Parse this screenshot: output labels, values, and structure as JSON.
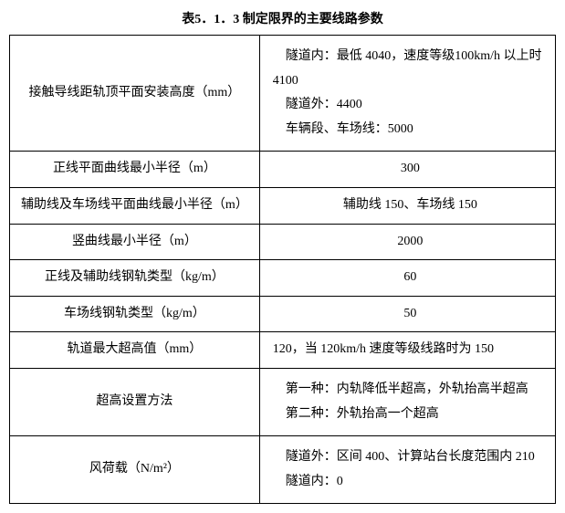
{
  "title": "表5．1．3 制定限界的主要线路参数",
  "rows": [
    {
      "label": "接触导线距轨顶平面安装高度（mm）",
      "value_lines": [
        "　隧道内：最低 4040，速度等级100km/h 以上时 4100",
        "　隧道外：4400",
        "　车辆段、车场线：5000"
      ]
    },
    {
      "label": "正线平面曲线最小半径（m）",
      "value": "300",
      "center": true
    },
    {
      "label": "辅助线及车场线平面曲线最小半径（m）",
      "value": "辅助线 150、车场线 150",
      "center": true
    },
    {
      "label": "竖曲线最小半径（m）",
      "value": "2000",
      "center": true
    },
    {
      "label": "正线及辅助线钢轨类型（kg/m）",
      "value": "60",
      "center": true
    },
    {
      "label": "车场线钢轨类型（kg/m）",
      "value": "50",
      "center": true
    },
    {
      "label": "轨道最大超高值（mm）",
      "value": "120，当 120km/h 速度等级线路时为 150",
      "center": false
    },
    {
      "label": "超高设置方法",
      "value_lines": [
        "　第一种：内轨降低半超高，外轨抬高半超高",
        "　第二种：外轨抬高一个超高"
      ]
    },
    {
      "label": "风荷载（N/m²）",
      "value_lines": [
        "　隧道外：区间 400、计算站台长度范围内 210",
        "　隧道内：0"
      ]
    }
  ]
}
